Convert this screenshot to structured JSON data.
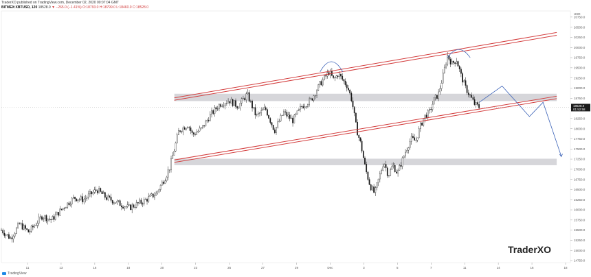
{
  "header": {
    "published": "TraderXO published on TradingView.com, December 02, 2020 00:07:04 GMT",
    "symbol": "BITMEX:XBTUSD, 120",
    "price": "18528.0",
    "change": "▼ −265.0 (−1.41%)",
    "ohlc": "O:18793.0 H:18799.0 L:18460.0 C:18528.0"
  },
  "watermark": "TraderXO",
  "footer": {
    "brand": "TradingView"
  },
  "colors": {
    "candle": "#1a1a1a",
    "channel": "#d33c3c",
    "zone": "#cfcfd4",
    "projection": "#3c63b8",
    "arc": "#3c63b8",
    "last_price_label": "#1a1a1a"
  },
  "chart_data": {
    "type": "candlestick",
    "title": "",
    "x_ticks": [
      "11",
      "13",
      "16",
      "18",
      "20",
      "23",
      "25",
      "27",
      "29",
      "Dec",
      "3",
      "5",
      "7",
      "11",
      "14",
      "16",
      "18"
    ],
    "y_ticks": [
      "20750.0",
      "20500.0",
      "20250.0",
      "20000.0",
      "19750.0",
      "19500.0",
      "19250.0",
      "19000.0",
      "18750.0",
      "18500.0",
      "18250.0",
      "18000.0",
      "17750.0",
      "17500.0",
      "17250.0",
      "17000.0",
      "16750.0",
      "16500.0",
      "16250.0",
      "16000.0",
      "15750.0",
      "15500.0",
      "15250.0",
      "15000.0",
      "14750.0"
    ],
    "top_tick": "USD",
    "ylim": [
      14700,
      20900
    ],
    "last_price": "18528.0",
    "last_time": "01:52:58",
    "price_path": [
      [
        0,
        15500
      ],
      [
        2,
        15300
      ],
      [
        4,
        15650
      ],
      [
        6,
        15450
      ],
      [
        9,
        15850
      ],
      [
        11,
        15750
      ],
      [
        14,
        16100
      ],
      [
        16,
        16300
      ],
      [
        18,
        16250
      ],
      [
        21,
        16500
      ],
      [
        23,
        16300
      ],
      [
        26,
        16150
      ],
      [
        28,
        16050
      ],
      [
        31,
        16200
      ],
      [
        34,
        16400
      ],
      [
        36,
        16800
      ],
      [
        37,
        17050
      ],
      [
        38,
        17500
      ],
      [
        39,
        17950
      ],
      [
        41,
        18100
      ],
      [
        42,
        17850
      ],
      [
        44,
        18000
      ],
      [
        46,
        18350
      ],
      [
        48,
        18600
      ],
      [
        50,
        18700
      ],
      [
        52,
        18550
      ],
      [
        54,
        18850
      ],
      [
        56,
        18300
      ],
      [
        58,
        18500
      ],
      [
        60,
        17950
      ],
      [
        62,
        18400
      ],
      [
        64,
        18200
      ],
      [
        66,
        18550
      ],
      [
        68,
        18700
      ],
      [
        70,
        19100
      ],
      [
        72,
        19400
      ],
      [
        73,
        19200
      ],
      [
        74,
        19350
      ],
      [
        76,
        19050
      ],
      [
        77,
        18700
      ],
      [
        78,
        18000
      ],
      [
        79,
        17600
      ],
      [
        80,
        17000
      ],
      [
        81,
        16600
      ],
      [
        82,
        16400
      ],
      [
        83,
        16800
      ],
      [
        84,
        17200
      ],
      [
        85,
        16850
      ],
      [
        86,
        17100
      ],
      [
        87,
        16900
      ],
      [
        88,
        17200
      ],
      [
        89,
        17500
      ],
      [
        90,
        17750
      ],
      [
        91,
        17700
      ],
      [
        92,
        18050
      ],
      [
        93,
        18300
      ],
      [
        94,
        18400
      ],
      [
        95,
        18700
      ],
      [
        96,
        18850
      ],
      [
        97,
        19300
      ],
      [
        98,
        19800
      ],
      [
        99,
        19600
      ],
      [
        100,
        19700
      ],
      [
        101,
        19300
      ],
      [
        102,
        19000
      ],
      [
        103,
        18800
      ],
      [
        104,
        18600
      ],
      [
        105,
        18528
      ]
    ],
    "channel_upper": [
      [
        38,
        18760,
        122,
        20370
      ],
      [
        38,
        18700,
        122,
        20300
      ]
    ],
    "channel_lower": [
      [
        38,
        17230,
        122,
        18800
      ],
      [
        38,
        17170,
        122,
        18740
      ]
    ],
    "zones": [
      [
        38,
        122,
        18680,
        18860
      ],
      [
        38,
        122,
        17100,
        17260
      ]
    ],
    "projection": [
      [
        105,
        18650
      ],
      [
        110,
        19050
      ],
      [
        116,
        18300
      ],
      [
        119,
        18650
      ],
      [
        123,
        17320
      ]
    ],
    "arcs": [
      [
        70,
        75,
        19400,
        19650
      ],
      [
        98,
        103,
        19750,
        19950
      ]
    ]
  }
}
